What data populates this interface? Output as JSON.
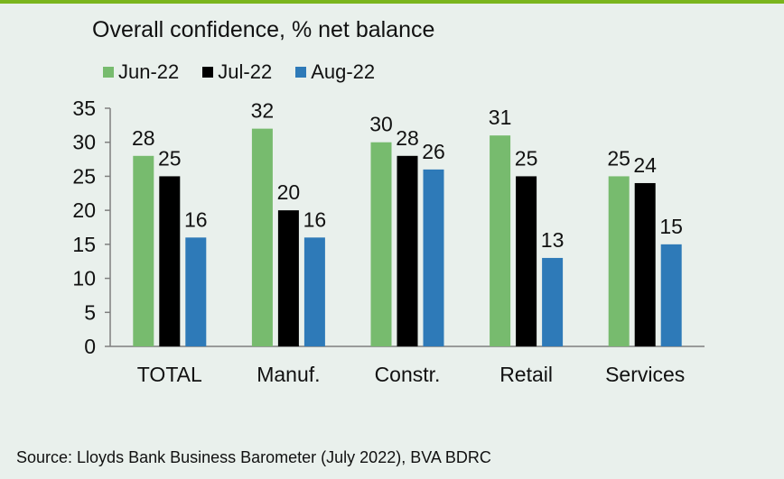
{
  "title": "Overall confidence, % net balance",
  "source": "Source: Lloyds Bank Business Barometer (July 2022), BVA BDRC",
  "colors": {
    "accent_rule": "#7ab51d",
    "background": "#e9f0ec"
  },
  "chart_data": {
    "type": "bar",
    "categories": [
      "TOTAL",
      "Manuf.",
      "Constr.",
      "Retail",
      "Services"
    ],
    "series": [
      {
        "name": "Jun-22",
        "color": "#77bb6e",
        "values": [
          28,
          32,
          30,
          31,
          25
        ]
      },
      {
        "name": "Jul-22",
        "color": "#000000",
        "values": [
          25,
          20,
          28,
          25,
          24
        ]
      },
      {
        "name": "Aug-22",
        "color": "#2e7ab8",
        "values": [
          16,
          16,
          26,
          13,
          15
        ]
      }
    ],
    "ylim": [
      0,
      35
    ],
    "yticks": [
      0,
      5,
      10,
      15,
      20,
      25,
      30,
      35
    ],
    "xlabel": "",
    "ylabel": "",
    "grid": false,
    "legend_position": "top-left"
  }
}
